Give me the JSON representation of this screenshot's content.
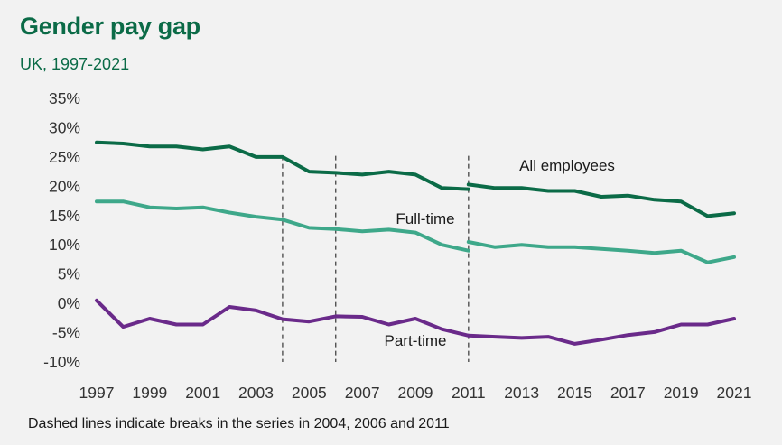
{
  "header": {
    "title": "Gender pay gap",
    "subtitle": "UK, 1997-2021"
  },
  "footnote": "Dashed lines indicate breaks in the series in 2004, 2006 and 2011",
  "chart_data": {
    "type": "line",
    "title": "Gender pay gap",
    "subtitle": "UK, 1997-2021",
    "xlabel": "",
    "ylabel": "",
    "xlim": [
      1997,
      2021
    ],
    "ylim": [
      -10,
      35
    ],
    "x_ticks": [
      1997,
      1999,
      2001,
      2003,
      2005,
      2007,
      2009,
      2011,
      2013,
      2015,
      2017,
      2019,
      2021
    ],
    "y_ticks": [
      35,
      30,
      25,
      20,
      15,
      10,
      5,
      0,
      -5,
      -10
    ],
    "y_tick_labels": [
      "35%",
      "30%",
      "25%",
      "20%",
      "15%",
      "10%",
      "5%",
      "0%",
      "-5%",
      "-10%"
    ],
    "grid": false,
    "legend": "inline labels",
    "breaks": [
      2004,
      2006,
      2011
    ],
    "series": [
      {
        "name": "All employees",
        "color": "#0b6b47",
        "segments": [
          {
            "x": [
              1997,
              1998,
              1999,
              2000,
              2001,
              2002,
              2003,
              2004,
              2005,
              2006,
              2007,
              2008,
              2009,
              2010,
              2011
            ],
            "y": [
              27.5,
              27.3,
              26.8,
              26.8,
              26.3,
              26.8,
              25.0,
              25.0,
              22.5,
              22.3,
              22.0,
              22.5,
              22.0,
              19.7,
              19.5
            ]
          },
          {
            "x": [
              2011,
              2012,
              2013,
              2014,
              2015,
              2016,
              2017,
              2018,
              2019,
              2020,
              2021
            ],
            "y": [
              20.3,
              19.7,
              19.7,
              19.2,
              19.2,
              18.2,
              18.4,
              17.7,
              17.4,
              14.9,
              15.4
            ]
          }
        ]
      },
      {
        "name": "Full-time",
        "color": "#3ea88a",
        "segments": [
          {
            "x": [
              1997,
              1998,
              1999,
              2000,
              2001,
              2002,
              2003,
              2004,
              2005,
              2006,
              2007,
              2008,
              2009,
              2010,
              2011
            ],
            "y": [
              17.4,
              17.4,
              16.4,
              16.2,
              16.4,
              15.5,
              14.8,
              14.3,
              12.9,
              12.7,
              12.3,
              12.6,
              12.1,
              10.0,
              9.0
            ]
          },
          {
            "x": [
              2011,
              2012,
              2013,
              2014,
              2015,
              2016,
              2017,
              2018,
              2019,
              2020,
              2021
            ],
            "y": [
              10.5,
              9.6,
              10.0,
              9.6,
              9.6,
              9.3,
              9.0,
              8.6,
              9.0,
              7.0,
              7.9
            ]
          }
        ]
      },
      {
        "name": "Part-time",
        "color": "#6a2a8a",
        "segments": [
          {
            "x": [
              1997,
              1998,
              1999,
              2000,
              2001,
              2002,
              2003,
              2004,
              2005,
              2006,
              2007,
              2008,
              2009,
              2010,
              2011
            ],
            "y": [
              0.5,
              -4.0,
              -2.6,
              -3.6,
              -3.6,
              -0.6,
              -1.2,
              -2.7,
              -3.1,
              -2.2,
              -2.3,
              -3.6,
              -2.6,
              -4.4,
              -5.5
            ]
          },
          {
            "x": [
              2011,
              2012,
              2013,
              2014,
              2015,
              2016,
              2017,
              2018,
              2019,
              2020,
              2021
            ],
            "y": [
              -5.5,
              -5.7,
              -5.9,
              -5.7,
              -6.9,
              -6.2,
              -5.4,
              -4.9,
              -3.6,
              -3.6,
              -2.6
            ]
          }
        ]
      }
    ]
  }
}
